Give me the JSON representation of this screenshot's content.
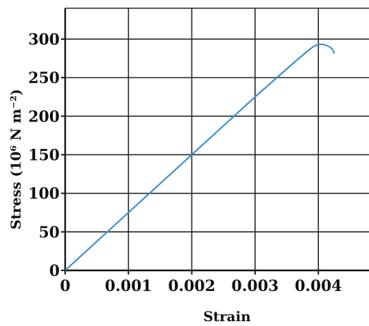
{
  "chart_data": {
    "type": "line",
    "xlabel": "Strain",
    "ylabel": "Stress (10⁶ N m⁻²)",
    "xlim": [
      0,
      0.0048
    ],
    "ylim": [
      0,
      340
    ],
    "grid": true,
    "x_ticks": [
      {
        "value": 0,
        "label": "0"
      },
      {
        "value": 0.001,
        "label": "0.001"
      },
      {
        "value": 0.002,
        "label": "0.002"
      },
      {
        "value": 0.003,
        "label": "0.003"
      },
      {
        "value": 0.004,
        "label": "0.004"
      }
    ],
    "y_ticks": [
      {
        "value": 0,
        "label": "0"
      },
      {
        "value": 50,
        "label": "50"
      },
      {
        "value": 100,
        "label": "100"
      },
      {
        "value": 150,
        "label": "150"
      },
      {
        "value": 200,
        "label": "200"
      },
      {
        "value": 250,
        "label": "250"
      },
      {
        "value": 300,
        "label": "300"
      }
    ],
    "series": [
      {
        "color": "#3b8ed0",
        "x": [
          0,
          0.001,
          0.002,
          0.003,
          0.0038,
          0.004,
          0.0042,
          0.00425
        ],
        "y": [
          0,
          75,
          150,
          225,
          283,
          295,
          290,
          282
        ]
      }
    ]
  }
}
